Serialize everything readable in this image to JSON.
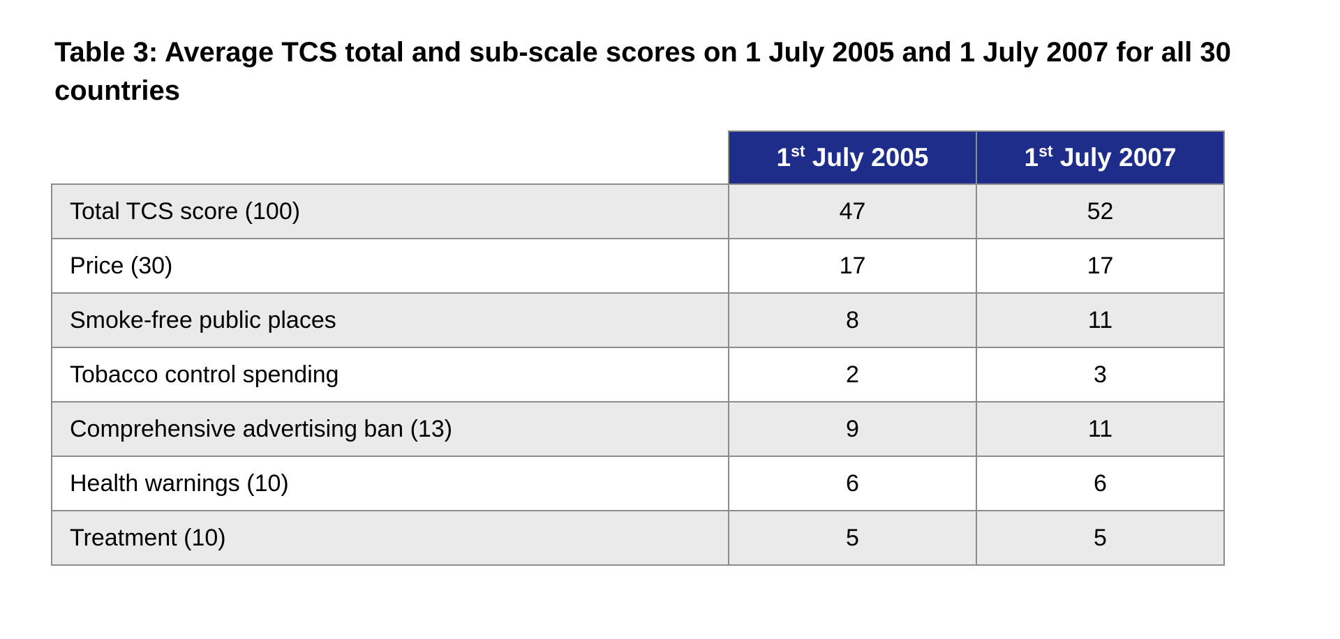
{
  "document": {
    "caption": {
      "line1": "Table 3: Average TCS total and sub-scale scores on 1 July 2005 and 1 July 2007 for all 30",
      "line2": "countries"
    }
  },
  "table": {
    "columns": [
      {
        "day": "1",
        "ordinal": "st",
        "rest": "July 2005"
      },
      {
        "day": "1",
        "ordinal": "st",
        "rest": "July 2007"
      }
    ],
    "rows": [
      {
        "label": "Total TCS score (100)",
        "values": [
          "47",
          "52"
        ]
      },
      {
        "label": "Price (30)",
        "values": [
          "17",
          "17"
        ]
      },
      {
        "label": "Smoke-free public places",
        "values": [
          "8",
          "11"
        ]
      },
      {
        "label": "Tobacco control spending",
        "values": [
          "2",
          "3"
        ]
      },
      {
        "label": "Comprehensive advertising ban (13)",
        "values": [
          "9",
          "11"
        ]
      },
      {
        "label": "Health warnings (10)",
        "values": [
          "6",
          "6"
        ]
      },
      {
        "label": "Treatment (10)",
        "values": [
          "5",
          "5"
        ]
      }
    ],
    "colors": {
      "header_bg": "#1e2c8a",
      "header_text": "#ffffff",
      "row_alt_bg": "#eaeaea",
      "row_bg": "#ffffff",
      "border": "#8c8c8c"
    }
  }
}
